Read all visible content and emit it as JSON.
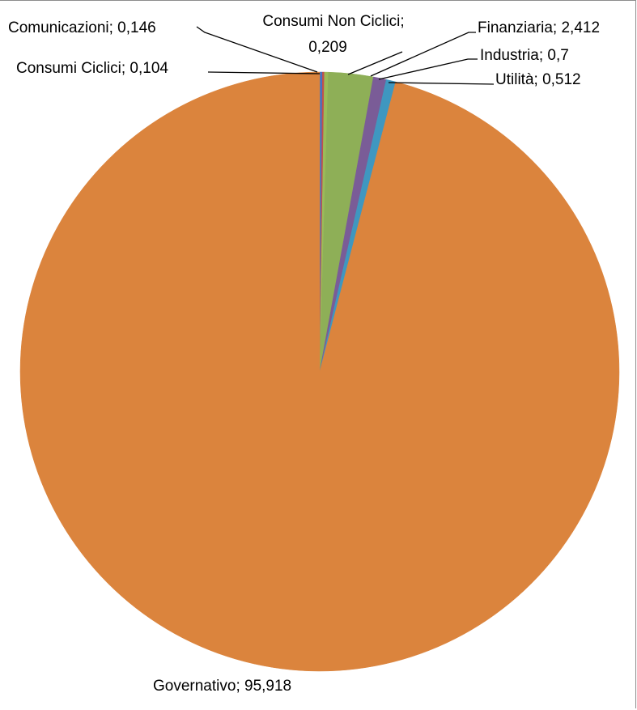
{
  "chart_data": {
    "type": "pie",
    "start_angle_deg": 0,
    "direction": "clockwise",
    "slices": [
      {
        "label": "Comunicazioni; 0,146",
        "category": "Comunicazioni",
        "value": 0.146,
        "color": "#4472c4"
      },
      {
        "label": "Consumi Ciclici; 0,104",
        "category": "Consumi Ciclici",
        "value": 0.104,
        "color": "#c0504d"
      },
      {
        "label_lines": [
          "Consumi Non Ciclici;",
          "0,209"
        ],
        "category": "Consumi Non Ciclici",
        "value": 0.209,
        "color": "#9bbb59"
      },
      {
        "label": "Finanziaria; 2,412",
        "category": "Finanziaria",
        "value": 2.412,
        "color": "#8eaf57"
      },
      {
        "label": "Industria; 0,7",
        "category": "Industria",
        "value": 0.7,
        "color": "#7a5c97"
      },
      {
        "label": "Utilità; 0,512",
        "category": "Utilità",
        "value": 0.512,
        "color": "#3f97c0"
      },
      {
        "label": "Governativo; 95,918",
        "category": "Governativo",
        "value": 95.918,
        "color": "#db843d"
      }
    ]
  }
}
